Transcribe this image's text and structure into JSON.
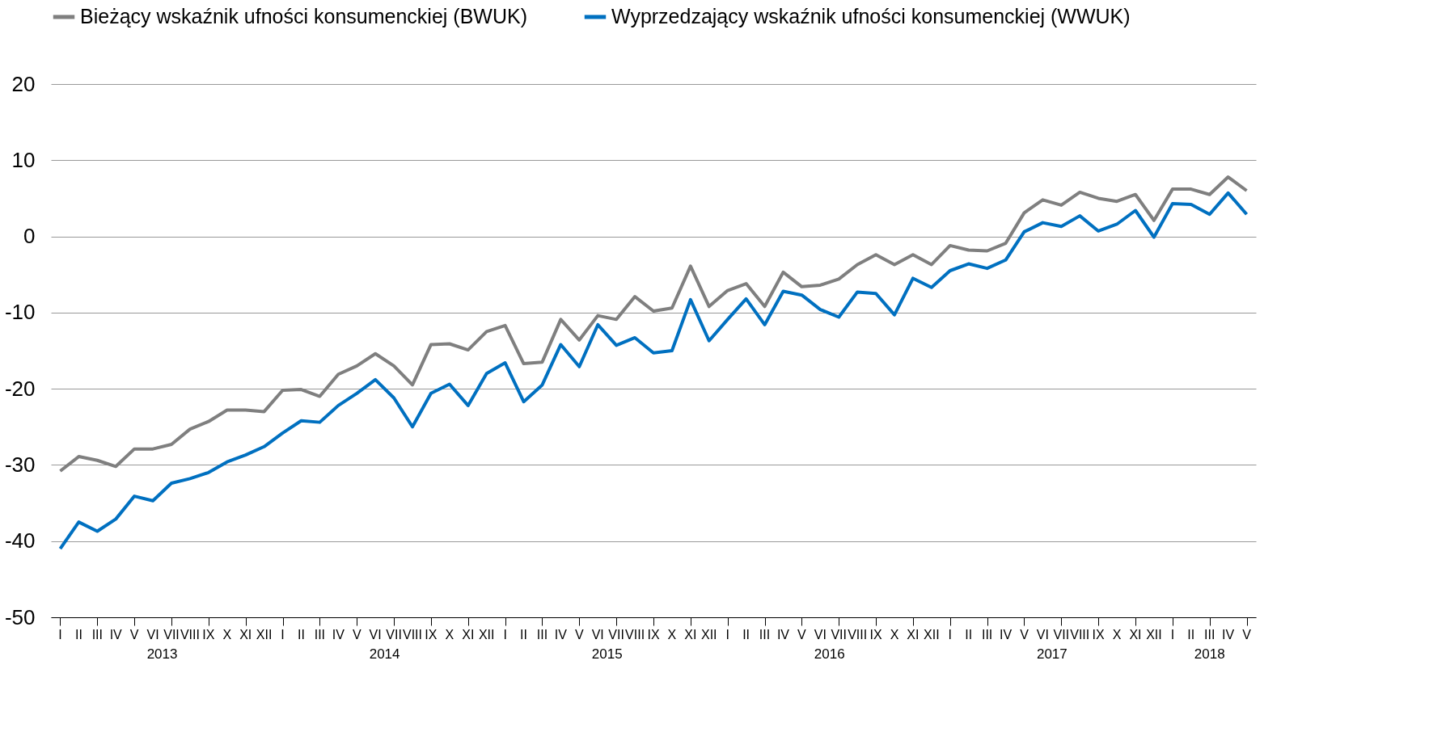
{
  "chart_data": {
    "type": "line",
    "categories": [
      "I",
      "II",
      "III",
      "IV",
      "V",
      "VI",
      "VII",
      "VIII",
      "IX",
      "X",
      "XI",
      "XII",
      "I",
      "II",
      "III",
      "IV",
      "V",
      "VI",
      "VII",
      "VIII",
      "IX",
      "X",
      "XI",
      "XII",
      "I",
      "II",
      "III",
      "IV",
      "V",
      "VI",
      "VII",
      "VIII",
      "IX",
      "X",
      "XI",
      "XII",
      "I",
      "II",
      "III",
      "IV",
      "V",
      "VI",
      "VII",
      "VIII",
      "IX",
      "X",
      "XI",
      "XII",
      "I",
      "II",
      "III",
      "IV",
      "V",
      "VI",
      "VII",
      "VIII",
      "IX",
      "X",
      "XI",
      "XII",
      "I",
      "II",
      "III",
      "IV",
      "V"
    ],
    "series": [
      {
        "name": "Bieżący wskaźnik ufności konsumenckiej (BWUK)",
        "color": "#7f7f7f",
        "values": [
          -30.8,
          -28.9,
          -29.4,
          -30.2,
          -27.9,
          -27.9,
          -27.3,
          -25.3,
          -24.3,
          -22.8,
          -22.8,
          -23.0,
          -20.2,
          -20.1,
          -21.0,
          -18.1,
          -17.0,
          -15.4,
          -17.0,
          -19.5,
          -14.2,
          -14.1,
          -14.9,
          -12.5,
          -11.7,
          -16.7,
          -16.5,
          -10.9,
          -13.6,
          -10.4,
          -10.9,
          -7.9,
          -9.8,
          -9.4,
          -3.9,
          -9.2,
          -7.1,
          -6.2,
          -9.2,
          -4.7,
          -6.6,
          -6.4,
          -5.6,
          -3.7,
          -2.4,
          -3.7,
          -2.4,
          -3.7,
          -1.2,
          -1.8,
          -1.9,
          -0.9,
          3.1,
          4.8,
          4.1,
          5.8,
          5.0,
          4.6,
          5.5,
          2.1,
          6.2,
          6.2,
          5.5,
          7.8,
          6.0
        ]
      },
      {
        "name": "Wyprzedzający wskaźnik ufności konsumenckiej (WWUK)",
        "color": "#0070c0",
        "values": [
          -41.0,
          -37.5,
          -38.7,
          -37.1,
          -34.1,
          -34.7,
          -32.4,
          -31.8,
          -31.0,
          -29.6,
          -28.7,
          -27.6,
          -25.8,
          -24.2,
          -24.4,
          -22.2,
          -20.6,
          -18.8,
          -21.2,
          -25.0,
          -20.6,
          -19.4,
          -22.2,
          -18.0,
          -16.6,
          -21.7,
          -19.5,
          -14.2,
          -17.1,
          -11.6,
          -14.3,
          -13.3,
          -15.3,
          -15.0,
          -8.3,
          -13.7,
          -10.9,
          -8.2,
          -11.6,
          -7.2,
          -7.7,
          -9.6,
          -10.6,
          -7.3,
          -7.5,
          -10.3,
          -5.5,
          -6.7,
          -4.5,
          -3.6,
          -4.2,
          -3.1,
          0.6,
          1.8,
          1.3,
          2.7,
          0.7,
          1.6,
          3.4,
          -0.1,
          4.3,
          4.2,
          2.9,
          5.7,
          2.9
        ]
      }
    ],
    "ylim": [
      -50,
      20
    ],
    "yticks": [
      -50,
      -40,
      -30,
      -20,
      -10,
      0,
      10,
      20
    ],
    "annotations": [
      "2013",
      "2014",
      "2015",
      "2016",
      "2017",
      "2018"
    ],
    "grid": "y",
    "legend": "top left",
    "marker": "none",
    "line_style": "solid"
  }
}
